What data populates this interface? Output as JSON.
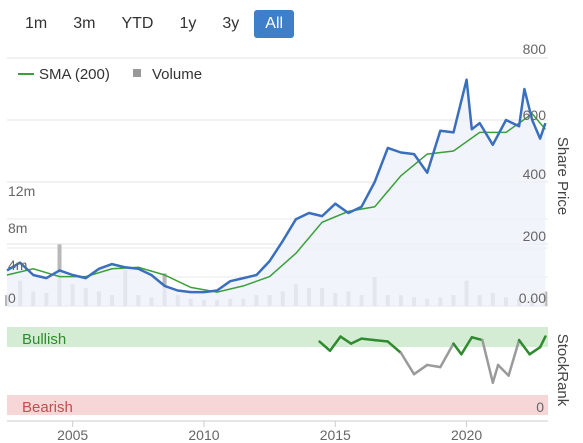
{
  "range_selector": {
    "buttons": [
      "1m",
      "3m",
      "YTD",
      "1y",
      "3y",
      "All"
    ],
    "active": "All"
  },
  "legend": {
    "sma_label": "SMA (200)",
    "volume_label": "Volume"
  },
  "colors": {
    "price": "#3a6fbf",
    "sma": "#3aa03a",
    "volume": "#b8b8b8",
    "bullish_band": "#d4ecd4",
    "bearish_band": "#f6d6d6",
    "rank_bull": "#2e8b2e",
    "rank_neutral": "#9a9a9a",
    "active_button": "#3f7fc9"
  },
  "chart_data": {
    "type": "line",
    "x_ticks": [
      "2005",
      "2010",
      "2015",
      "2020"
    ],
    "price_axis": {
      "title": "Share Price",
      "ticks": [
        "800",
        "600",
        "400",
        "200",
        "0.00"
      ],
      "ylim": [
        0,
        800
      ]
    },
    "volume_axis": {
      "ticks": [
        "12m",
        "8m",
        "4m",
        "0"
      ],
      "ylim": [
        0,
        16
      ]
    },
    "rank_axis": {
      "title": "StockRank",
      "top_label": "Bullish",
      "bottom_label": "Bearish",
      "bottom_value": "0",
      "ylim": [
        0,
        100
      ]
    },
    "series": [
      {
        "name": "Share Price",
        "x": [
          2002.5,
          2003.0,
          2003.5,
          2004.0,
          2004.5,
          2005.0,
          2005.5,
          2006.0,
          2006.5,
          2007.0,
          2007.5,
          2008.0,
          2008.5,
          2009.0,
          2009.5,
          2010.0,
          2010.5,
          2011.0,
          2011.5,
          2012.0,
          2012.5,
          2013.0,
          2013.5,
          2014.0,
          2014.5,
          2015.0,
          2015.5,
          2016.0,
          2016.5,
          2017.0,
          2017.5,
          2018.0,
          2018.5,
          2019.0,
          2019.5,
          2020.0,
          2020.2,
          2020.5,
          2021.0,
          2021.5,
          2022.0,
          2022.2,
          2022.5,
          2022.8,
          2023.0
        ],
        "values": [
          115,
          140,
          100,
          90,
          115,
          100,
          90,
          120,
          135,
          125,
          120,
          100,
          65,
          50,
          45,
          45,
          50,
          80,
          90,
          100,
          145,
          210,
          280,
          300,
          290,
          330,
          300,
          320,
          400,
          510,
          495,
          490,
          430,
          565,
          560,
          730,
          570,
          590,
          520,
          600,
          580,
          700,
          600,
          540,
          590
        ]
      },
      {
        "name": "SMA (200)",
        "x": [
          2002.5,
          2003.5,
          2004.5,
          2005.5,
          2006.5,
          2007.5,
          2008.5,
          2009.5,
          2010.5,
          2011.5,
          2012.5,
          2013.5,
          2014.5,
          2015.5,
          2016.5,
          2017.5,
          2018.5,
          2019.5,
          2020.5,
          2021.5,
          2022.5,
          2023.0
        ],
        "values": [
          100,
          120,
          95,
          95,
          120,
          125,
          100,
          60,
          45,
          65,
          95,
          170,
          270,
          305,
          320,
          420,
          490,
          500,
          560,
          560,
          620,
          570
        ]
      },
      {
        "name": "Volume",
        "x": [
          2002.5,
          2003.0,
          2003.5,
          2004.0,
          2004.5,
          2005.0,
          2005.5,
          2006.0,
          2006.5,
          2007.0,
          2007.5,
          2008.0,
          2008.5,
          2009.0,
          2009.5,
          2010.0,
          2010.5,
          2011.0,
          2011.5,
          2012.0,
          2012.5,
          2013.0,
          2013.5,
          2014.0,
          2014.5,
          2015.0,
          2015.5,
          2016.0,
          2016.5,
          2017.0,
          2017.5,
          2018.0,
          2018.5,
          2019.0,
          2019.5,
          2020.0,
          2020.5,
          2021.0,
          2021.5,
          2022.0,
          2022.5,
          2023.0
        ],
        "values": [
          1.5,
          3.5,
          2.0,
          1.8,
          8.5,
          3.0,
          2.5,
          2.0,
          1.5,
          5.0,
          1.5,
          1.2,
          4.5,
          1.5,
          1.0,
          0.8,
          0.8,
          1.0,
          1.0,
          1.5,
          1.5,
          2.0,
          3.0,
          2.5,
          2.5,
          1.8,
          2.0,
          1.5,
          4.0,
          1.5,
          1.5,
          1.2,
          1.0,
          1.2,
          1.5,
          3.5,
          1.5,
          1.8,
          1.2,
          1.0,
          1.2,
          2.0
        ]
      },
      {
        "name": "StockRank",
        "x": [
          2014.4,
          2014.8,
          2015.2,
          2015.6,
          2016.0,
          2016.5,
          2017.0,
          2017.5,
          2018.0,
          2018.5,
          2019.0,
          2019.5,
          2019.8,
          2020.2,
          2020.6,
          2021.0,
          2021.2,
          2021.6,
          2022.0,
          2022.4,
          2022.8,
          2023.0
        ],
        "values": [
          88,
          75,
          95,
          85,
          92,
          90,
          88,
          72,
          42,
          55,
          52,
          85,
          70,
          94,
          90,
          30,
          55,
          40,
          90,
          70,
          80,
          95
        ]
      }
    ]
  }
}
